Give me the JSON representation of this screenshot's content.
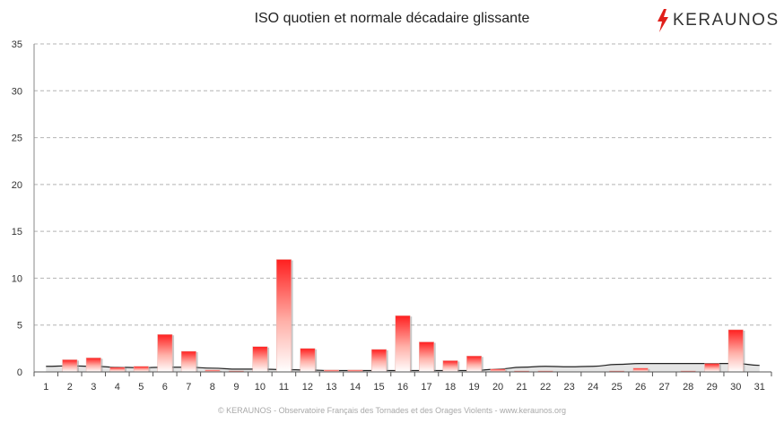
{
  "header": {
    "title": "ISO quotien et normale décadaire glissante"
  },
  "brand": {
    "name": "KERAUNOS",
    "accent_color": "#e0201b"
  },
  "footer": {
    "text": "© KERAUNOS - Observatoire Français des Tornades et des Orages Violents - www.keraunos.org"
  },
  "chart_data": {
    "type": "bar",
    "categories": [
      "1",
      "2",
      "3",
      "4",
      "5",
      "6",
      "7",
      "8",
      "9",
      "10",
      "11",
      "12",
      "13",
      "14",
      "15",
      "16",
      "17",
      "18",
      "19",
      "20",
      "21",
      "22",
      "23",
      "24",
      "25",
      "26",
      "27",
      "28",
      "29",
      "30",
      "31"
    ],
    "series": [
      {
        "values": [
          0,
          1.3,
          1.5,
          0.5,
          0.6,
          4.0,
          2.2,
          0.2,
          0.1,
          2.7,
          12.0,
          2.5,
          0.2,
          0.2,
          2.4,
          6.0,
          3.2,
          1.2,
          1.7,
          0.3,
          0.1,
          0.1,
          0,
          0,
          0.1,
          0.4,
          0,
          0.1,
          0.9,
          4.5,
          0
        ]
      },
      {
        "type": "area",
        "values": [
          0.6,
          0.65,
          0.6,
          0.5,
          0.45,
          0.5,
          0.5,
          0.4,
          0.3,
          0.3,
          0.25,
          0.2,
          0.15,
          0.15,
          0.15,
          0.15,
          0.15,
          0.15,
          0.15,
          0.3,
          0.5,
          0.6,
          0.55,
          0.6,
          0.8,
          0.9,
          0.9,
          0.9,
          0.9,
          0.9,
          0.7
        ]
      }
    ],
    "ylim": [
      0,
      35
    ],
    "yticks": [
      0,
      5,
      10,
      15,
      20,
      25,
      30,
      35
    ],
    "grid": true,
    "colors": {
      "bar_top": "#ff1f1f",
      "bar_bottom": "#ffffff",
      "normal_fill": "#e4e4e4",
      "normal_line": "#222222",
      "grid": "#b4b4b4"
    }
  }
}
